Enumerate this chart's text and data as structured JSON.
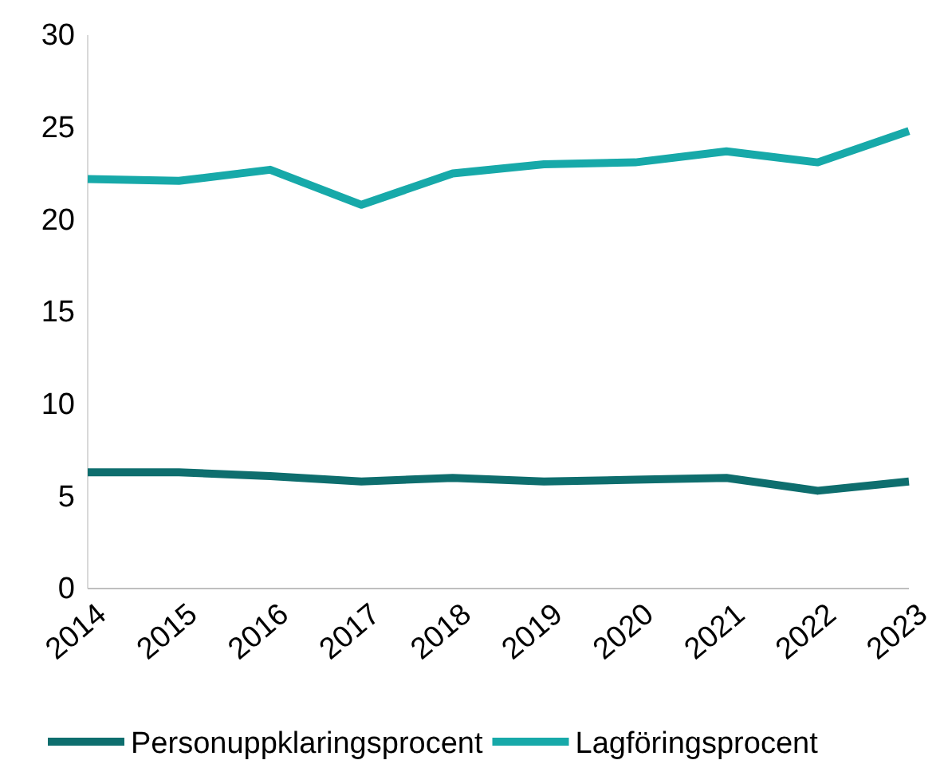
{
  "chart_data": {
    "type": "line",
    "categories": [
      "2014",
      "2015",
      "2016",
      "2017",
      "2018",
      "2019",
      "2020",
      "2021",
      "2022",
      "2023"
    ],
    "series": [
      {
        "name": "Personuppklaringsprocent",
        "color": "#0e6e6e",
        "values": [
          6.3,
          6.3,
          6.1,
          5.8,
          6.0,
          5.8,
          5.9,
          6.0,
          5.3,
          5.8
        ]
      },
      {
        "name": "Lagföringsprocent",
        "color": "#17a9a9",
        "values": [
          22.2,
          22.1,
          22.7,
          20.8,
          22.5,
          23.0,
          23.1,
          23.7,
          23.1,
          24.8
        ]
      }
    ],
    "ylim": [
      0,
      30
    ],
    "yticks": [
      0,
      5,
      10,
      15,
      20,
      25,
      30
    ],
    "grid": false,
    "legend": "bottom",
    "marker": "none",
    "line_style": "solid"
  }
}
